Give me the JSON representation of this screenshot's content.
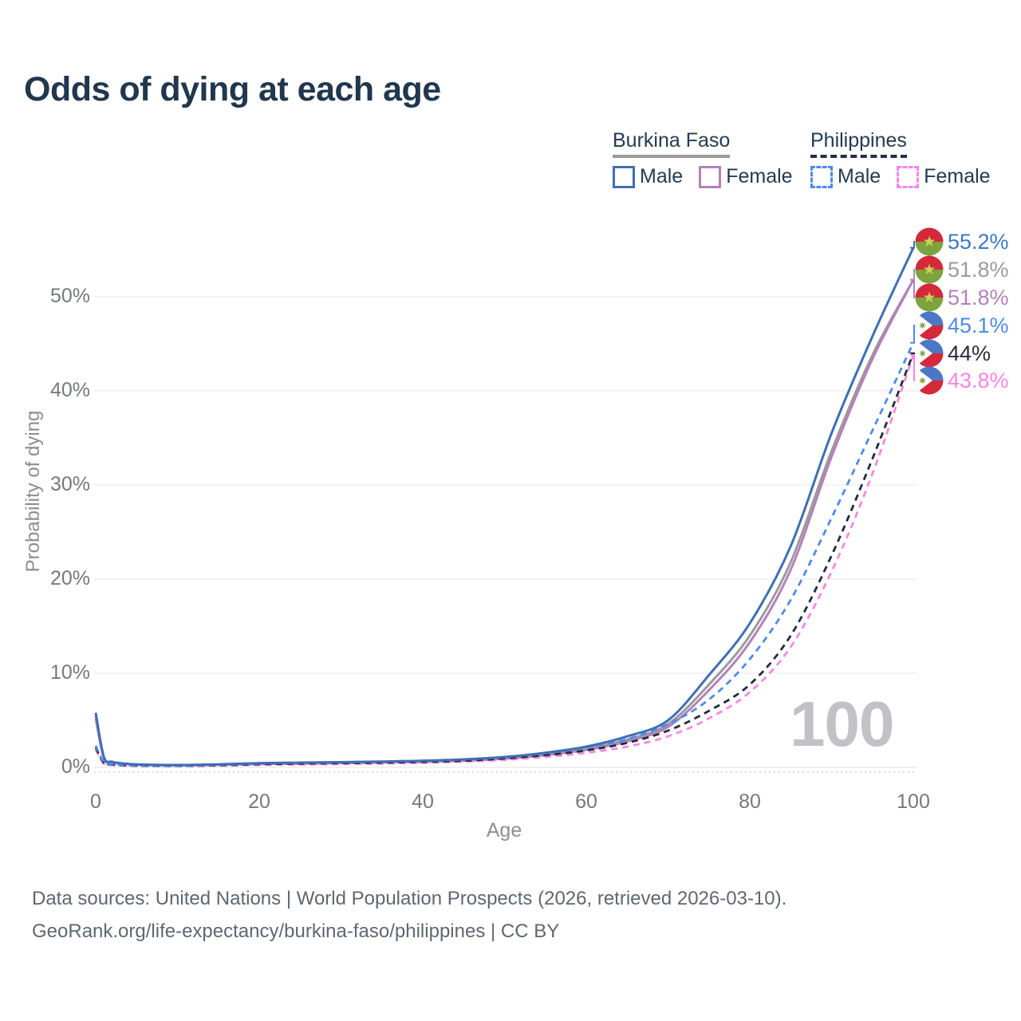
{
  "title": "Odds of dying at each age",
  "legend": {
    "groups": [
      {
        "label": "Burkina Faso",
        "underline_style": "solid",
        "underline_color": "#9b9b9b",
        "items": [
          {
            "label": "Male",
            "color": "#3e6fb4",
            "dash": false
          },
          {
            "label": "Female",
            "color": "#b581ba",
            "dash": false
          }
        ]
      },
      {
        "label": "Philippines",
        "underline_style": "dashed",
        "underline_color": "#223047",
        "items": [
          {
            "label": "Male",
            "color": "#4e8bea",
            "dash": true
          },
          {
            "label": "Female",
            "color": "#fc85e6",
            "dash": true
          }
        ]
      }
    ]
  },
  "watermark": "100",
  "chart_data": {
    "type": "line",
    "title": "Odds of dying at each age",
    "xlabel": "Age",
    "ylabel": "Probability of dying",
    "xlim": [
      0,
      100
    ],
    "ylim_pct": [
      0,
      57
    ],
    "grid": "horizontal",
    "x_ticks": [
      "0",
      "20",
      "40",
      "60",
      "80",
      "100"
    ],
    "y_ticks": [
      "0%",
      "10%",
      "20%",
      "30%",
      "40%",
      "50%"
    ],
    "x": [
      0,
      1,
      2,
      3,
      5,
      10,
      15,
      20,
      25,
      30,
      35,
      40,
      45,
      50,
      55,
      60,
      65,
      70,
      75,
      80,
      85,
      90,
      95,
      100
    ],
    "series": [
      {
        "name": "Burkina Faso Male",
        "color": "#3e6fb4",
        "dash": false,
        "end_label": "55.2%",
        "values": [
          5.8,
          1.1,
          0.6,
          0.45,
          0.32,
          0.25,
          0.32,
          0.45,
          0.5,
          0.55,
          0.62,
          0.7,
          0.85,
          1.1,
          1.55,
          2.2,
          3.3,
          5.0,
          9.8,
          15.3,
          23.5,
          35.5,
          45.8,
          55.2
        ]
      },
      {
        "name": "Burkina Faso",
        "color": "#9b9b9b",
        "dash": false,
        "end_label": "51.8%",
        "values": [
          5.5,
          1.0,
          0.55,
          0.42,
          0.3,
          0.23,
          0.3,
          0.4,
          0.45,
          0.5,
          0.56,
          0.63,
          0.76,
          1.0,
          1.4,
          2.0,
          2.95,
          4.6,
          8.8,
          14.0,
          21.8,
          33.6,
          43.8,
          51.8
        ]
      },
      {
        "name": "Burkina Faso Female",
        "color": "#b581ba",
        "dash": false,
        "end_label": "51.8%",
        "values": [
          5.2,
          0.95,
          0.52,
          0.4,
          0.28,
          0.22,
          0.27,
          0.36,
          0.4,
          0.45,
          0.51,
          0.58,
          0.7,
          0.92,
          1.3,
          1.85,
          2.75,
          4.3,
          8.2,
          13.3,
          21.0,
          33.0,
          43.4,
          51.8
        ]
      },
      {
        "name": "Philippines Male",
        "color": "#4e8bea",
        "dash": true,
        "end_label": "45.1%",
        "values": [
          2.3,
          0.5,
          0.32,
          0.26,
          0.2,
          0.18,
          0.26,
          0.4,
          0.5,
          0.55,
          0.62,
          0.7,
          0.85,
          1.1,
          1.5,
          2.1,
          3.0,
          4.6,
          7.2,
          11.5,
          17.8,
          26.5,
          35.8,
          45.1
        ]
      },
      {
        "name": "Philippines",
        "color": "#222c3a",
        "dash": true,
        "end_label": "44%",
        "values": [
          2.1,
          0.45,
          0.29,
          0.23,
          0.18,
          0.16,
          0.22,
          0.33,
          0.4,
          0.45,
          0.5,
          0.58,
          0.7,
          0.95,
          1.3,
          1.8,
          2.6,
          3.9,
          6.0,
          8.8,
          14.0,
          22.5,
          32.8,
          44.0
        ]
      },
      {
        "name": "Philippines Female",
        "color": "#fc85e6",
        "dash": true,
        "end_label": "43.8%",
        "values": [
          1.9,
          0.4,
          0.26,
          0.2,
          0.16,
          0.14,
          0.18,
          0.25,
          0.3,
          0.35,
          0.4,
          0.48,
          0.6,
          0.8,
          1.1,
          1.55,
          2.2,
          3.3,
          5.2,
          8.0,
          12.8,
          20.8,
          31.2,
          43.8
        ]
      }
    ]
  },
  "end_labels": [
    {
      "value": "55.2%",
      "color": "#3e78c4",
      "flag": "burkina_faso"
    },
    {
      "value": "51.8%",
      "color": "#9b9b9b",
      "flag": "burkina_faso"
    },
    {
      "value": "51.8%",
      "color": "#b581ba",
      "flag": "burkina_faso"
    },
    {
      "value": "45.1%",
      "color": "#4e8bea",
      "flag": "philippines"
    },
    {
      "value": "44%",
      "color": "#262d3a",
      "flag": "philippines"
    },
    {
      "value": "43.8%",
      "color": "#fc85e6",
      "flag": "philippines"
    }
  ],
  "flag_colors": {
    "burkina_faso": {
      "red": "#d5283b",
      "green": "#7ca33d",
      "star": "#c9d05b"
    },
    "philippines": {
      "blue": "#4a78c6",
      "red": "#d5283b",
      "white": "#ffffff",
      "sun": "#7fa843"
    }
  },
  "footer": {
    "line1": "Data sources: United Nations | World Population Prospects (2026, retrieved 2026-03-10).",
    "line2": "GeoRank.org/life-expectancy/burkina-faso/philippines | CC BY"
  }
}
